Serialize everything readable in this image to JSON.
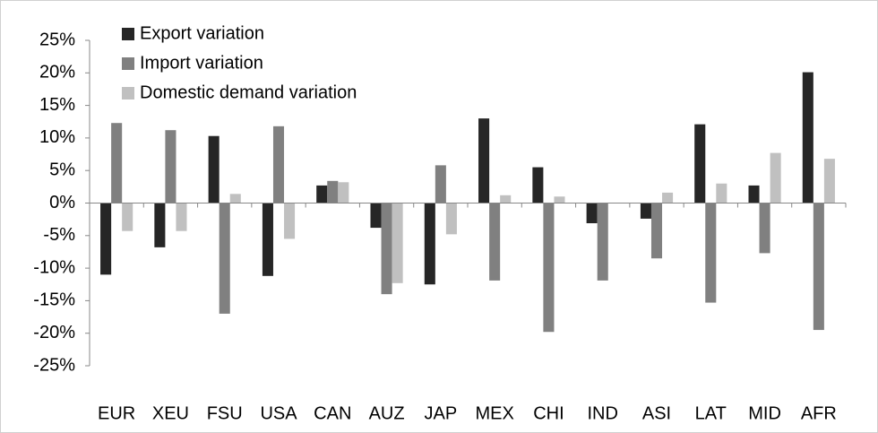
{
  "chart_data": {
    "type": "bar",
    "categories": [
      "EUR",
      "XEU",
      "FSU",
      "USA",
      "CAN",
      "AUZ",
      "JAP",
      "MEX",
      "CHI",
      "IND",
      "ASI",
      "LAT",
      "MID",
      "AFR"
    ],
    "series": [
      {
        "name": "Export variation",
        "color": "#262626",
        "values": [
          -11,
          -6.8,
          10.3,
          -11.2,
          2.7,
          -3.8,
          -12.5,
          13,
          5.5,
          -3.1,
          -2.4,
          12.1,
          2.7,
          20.1
        ]
      },
      {
        "name": "Import variation",
        "color": "#808080",
        "values": [
          12.3,
          11.2,
          -17,
          11.8,
          3.4,
          -14,
          5.8,
          -11.9,
          -19.8,
          -11.9,
          -8.5,
          -15.3,
          -7.7,
          -19.5
        ]
      },
      {
        "name": "Domestic demand variation",
        "color": "#c0c0c0",
        "values": [
          -4.3,
          -4.3,
          1.4,
          -5.5,
          3.2,
          -12.3,
          -4.8,
          1.2,
          1,
          0,
          1.6,
          3,
          7.7,
          6.8
        ]
      }
    ],
    "ylim": [
      -25,
      25
    ],
    "yticks": [
      {
        "value": -25,
        "label": "-25%"
      },
      {
        "value": -20,
        "label": "-20%"
      },
      {
        "value": -15,
        "label": "-15%"
      },
      {
        "value": -10,
        "label": "-10%"
      },
      {
        "value": -5,
        "label": "-5%"
      },
      {
        "value": 0,
        "label": "0%"
      },
      {
        "value": 5,
        "label": "5%"
      },
      {
        "value": 10,
        "label": "10%"
      },
      {
        "value": 15,
        "label": "15%"
      },
      {
        "value": 20,
        "label": "20%"
      },
      {
        "value": 25,
        "label": "25%"
      }
    ],
    "grid": false,
    "legend": "top-left"
  }
}
